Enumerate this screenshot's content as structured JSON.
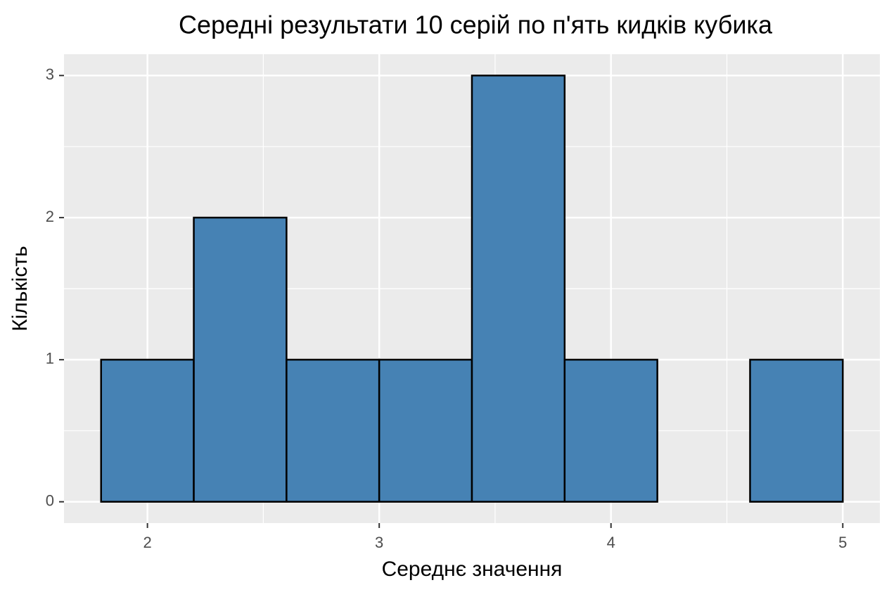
{
  "chart_data": {
    "type": "histogram",
    "title": "Середні результати 10 серій по п'ять кидків кубика",
    "x_label": "Середнє значення",
    "y_label": "Кількість",
    "bins": [
      1.8,
      2.2,
      2.6,
      3.0,
      3.4,
      3.8,
      4.2,
      4.6,
      5.0
    ],
    "values": [
      1,
      2,
      1,
      1,
      3,
      1,
      0,
      1
    ],
    "color": "#4682b4",
    "edge_color": "#000000",
    "xlim": [
      1.64,
      5.16
    ],
    "xticks": [
      2,
      3,
      4,
      5
    ],
    "ylim": [
      -0.15,
      3.15
    ],
    "yticks": [
      0,
      1,
      2,
      3
    ],
    "x_minor_grid": [
      2.5,
      3.5,
      4.5
    ],
    "y_minor_grid": [
      0.5,
      1.5,
      2.5
    ],
    "grid": true
  }
}
